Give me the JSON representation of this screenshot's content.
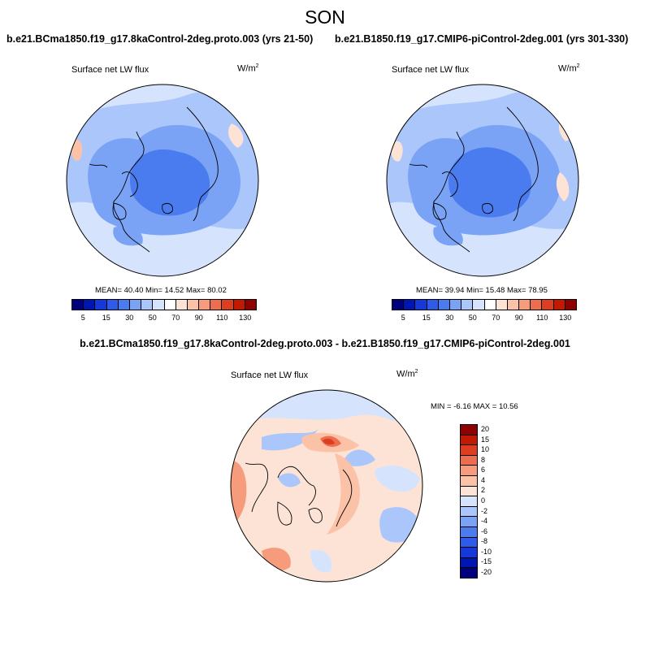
{
  "season": "SON",
  "panels": [
    {
      "title": "b.e21.BCma1850.f19_g17.8kaControl-2deg.proto.003 (yrs 21-50)",
      "variable": "Surface net LW flux",
      "units_base": "W/m",
      "units_exp": "2",
      "stats": "MEAN=  40.40   Min=  14.52   Max=  80.02"
    },
    {
      "title": "b.e21.B1850.f19_g17.CMIP6-piControl-2deg.001 (yrs 301-330)",
      "variable": "Surface net LW flux",
      "units_base": "W/m",
      "units_exp": "2",
      "stats": "MEAN=  39.94   Min=  15.48   Max=  78.95"
    }
  ],
  "diff": {
    "title": "b.e21.BCma1850.f19_g17.8kaControl-2deg.proto.003 - b.e21.B1850.f19_g17.CMIP6-piControl-2deg.001",
    "variable": "Surface net LW flux",
    "units_base": "W/m",
    "units_exp": "2",
    "stats": "MIN =  -6.16  MAX =  10.56"
  },
  "colorbar_abs": {
    "colors": [
      "#00007f",
      "#0016b3",
      "#1539d9",
      "#2e5ce8",
      "#4a7cf0",
      "#7aa2f5",
      "#aac6fa",
      "#d5e4fc",
      "#ffffff",
      "#fde3d6",
      "#fbc2a8",
      "#f69b7b",
      "#ec6e4e",
      "#dd3d20",
      "#c21a00",
      "#8f0000"
    ],
    "labels": [
      "5",
      "15",
      "30",
      "50",
      "70",
      "90",
      "110",
      "130"
    ]
  },
  "colorbar_diff": {
    "colors": [
      "#8f0000",
      "#c21a00",
      "#dd3d20",
      "#ec6e4e",
      "#f69b7b",
      "#fbc2a8",
      "#fde3d6",
      "#d5e4fc",
      "#aac6fa",
      "#7aa2f5",
      "#4a7cf0",
      "#2e5ce8",
      "#1539d9",
      "#0016b3",
      "#00007f"
    ],
    "labels": [
      "20",
      "15",
      "10",
      "8",
      "6",
      "4",
      "2",
      "0",
      "-2",
      "-4",
      "-6",
      "-8",
      "-10",
      "-15",
      "-20"
    ]
  }
}
